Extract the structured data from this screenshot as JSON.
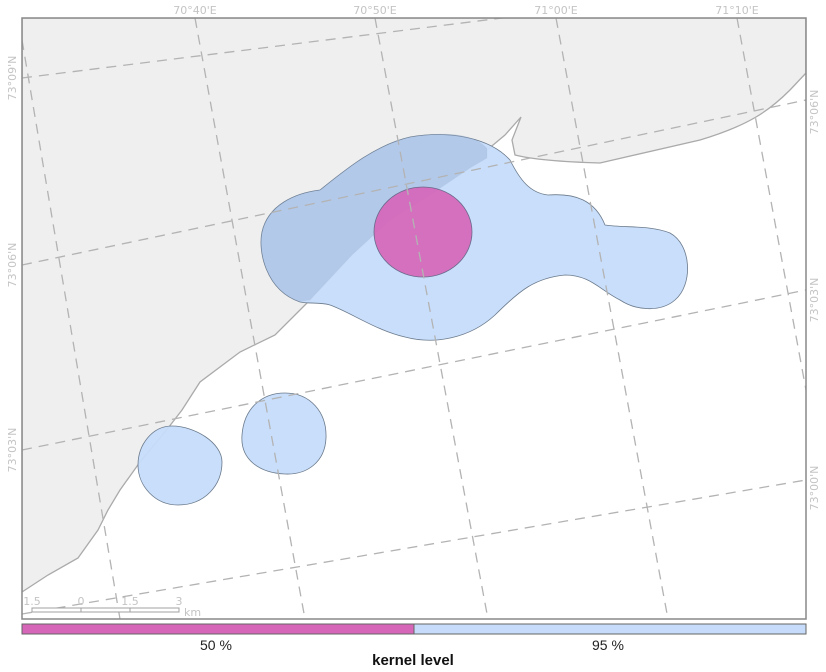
{
  "map": {
    "lon_ticks": [
      "70°40'E",
      "70°50'E",
      "71°00'E",
      "71°10'E"
    ],
    "lat_ticks_left": [
      "73°09'N",
      "73°06'N",
      "73°03'N"
    ],
    "lat_ticks_right": [
      "73°06'N",
      "73°03'N",
      "73°00'N"
    ],
    "colors": {
      "land": "#efefef",
      "water": "#ffffff",
      "kernel_50": "#d566b8",
      "kernel_95": "#c6dcfa",
      "graticule": "#b3b3b3"
    }
  },
  "scale_bar": {
    "labels": [
      "1.5",
      "0",
      "1.5",
      "3"
    ],
    "unit": "km"
  },
  "legend": {
    "title": "kernel level",
    "items": [
      {
        "label": "50 %",
        "color": "#d566b8"
      },
      {
        "label": "95 %",
        "color": "#c6dcfa"
      }
    ]
  }
}
